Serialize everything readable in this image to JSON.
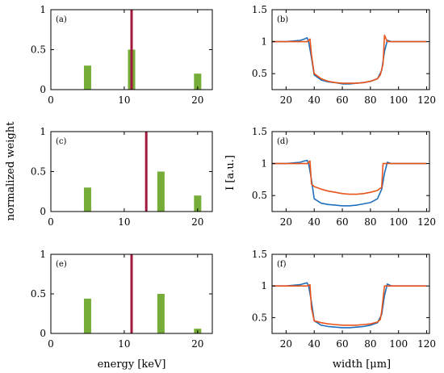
{
  "figure": {
    "shared_ylabel_left": "normalized weight",
    "shared_ylabel_right": "I [a.u.]",
    "shared_xlabel_left": "energy [keV]",
    "shared_xlabel_right": "width [μm]"
  },
  "colors": {
    "bars": "#76ad38",
    "vline": "#a0183c",
    "profile_blue": "#1f6fba",
    "profile_orange": "#e8541c",
    "axis": "#000000"
  },
  "chart_data": [
    {
      "panel": "(a)",
      "type": "bar",
      "x": [
        5,
        11,
        20
      ],
      "values": [
        0.3,
        0.5,
        0.2
      ],
      "vline": 11,
      "xlim": [
        0,
        22
      ],
      "ylim": [
        0,
        1
      ],
      "xticks": [
        0,
        10,
        20
      ],
      "yticks": [
        0,
        0.5,
        1
      ],
      "ytick_labels": [
        "0",
        "0.5",
        "1"
      ]
    },
    {
      "panel": "(b)",
      "type": "line",
      "xlim": [
        10,
        122
      ],
      "ylim": [
        0.25,
        1.5
      ],
      "xticks": [
        20,
        40,
        60,
        80,
        100,
        120
      ],
      "yticks": [
        0.5,
        1,
        1.5
      ],
      "ytick_labels": [
        "0.5",
        "1",
        "1.5"
      ],
      "series": [
        {
          "color": "blue",
          "x": [
            10,
            20,
            30,
            33,
            35,
            36,
            38,
            40,
            45,
            50,
            55,
            60,
            65,
            70,
            75,
            80,
            85,
            88,
            90,
            92,
            95,
            100,
            110,
            120
          ],
          "y": [
            1.0,
            1.0,
            1.02,
            1.04,
            1.06,
            1.0,
            0.75,
            0.48,
            0.4,
            0.37,
            0.36,
            0.34,
            0.34,
            0.35,
            0.36,
            0.38,
            0.42,
            0.55,
            0.85,
            1.02,
            1.0,
            1.0,
            1.0,
            1.0
          ]
        },
        {
          "color": "orange",
          "x": [
            10,
            20,
            30,
            35,
            37,
            38,
            40,
            45,
            50,
            55,
            60,
            65,
            70,
            75,
            80,
            85,
            87,
            89,
            90,
            92,
            95,
            100,
            110,
            120
          ],
          "y": [
            1.0,
            1.0,
            1.0,
            1.0,
            1.04,
            0.8,
            0.5,
            0.42,
            0.38,
            0.36,
            0.35,
            0.35,
            0.35,
            0.36,
            0.38,
            0.42,
            0.48,
            0.65,
            1.1,
            1.0,
            1.0,
            1.0,
            1.0,
            1.0
          ]
        }
      ]
    },
    {
      "panel": "(c)",
      "type": "bar",
      "x": [
        5,
        15,
        20
      ],
      "values": [
        0.3,
        0.5,
        0.2
      ],
      "vline": 13,
      "xlim": [
        0,
        22
      ],
      "ylim": [
        0,
        1
      ],
      "xticks": [
        0,
        10,
        20
      ],
      "yticks": [
        0,
        0.5,
        1
      ],
      "ytick_labels": [
        "0",
        "0.5",
        "1"
      ]
    },
    {
      "panel": "(d)",
      "type": "line",
      "xlim": [
        10,
        122
      ],
      "ylim": [
        0.25,
        1.5
      ],
      "xticks": [
        20,
        40,
        60,
        80,
        100,
        120
      ],
      "yticks": [
        0.5,
        1,
        1.5
      ],
      "ytick_labels": [
        "0.5",
        "1",
        "1.5"
      ],
      "series": [
        {
          "color": "blue",
          "x": [
            10,
            20,
            30,
            33,
            35,
            36,
            38,
            40,
            45,
            50,
            55,
            60,
            65,
            70,
            75,
            80,
            85,
            88,
            90,
            92,
            95,
            100,
            110,
            120
          ],
          "y": [
            1.0,
            1.0,
            1.02,
            1.04,
            1.05,
            1.0,
            0.75,
            0.45,
            0.38,
            0.36,
            0.35,
            0.34,
            0.34,
            0.35,
            0.37,
            0.39,
            0.45,
            0.6,
            0.85,
            1.02,
            1.0,
            1.0,
            1.0,
            1.0
          ]
        },
        {
          "color": "orange",
          "x": [
            10,
            20,
            30,
            35,
            37,
            38,
            40,
            45,
            50,
            55,
            60,
            65,
            70,
            75,
            80,
            85,
            88,
            89,
            90,
            92,
            95,
            100,
            110,
            120
          ],
          "y": [
            1.0,
            1.0,
            1.0,
            1.0,
            1.04,
            0.68,
            0.64,
            0.6,
            0.57,
            0.55,
            0.53,
            0.52,
            0.52,
            0.53,
            0.55,
            0.58,
            0.63,
            1.0,
            1.0,
            1.0,
            1.0,
            1.0,
            1.0,
            1.0
          ]
        }
      ]
    },
    {
      "panel": "(e)",
      "type": "bar",
      "x": [
        5,
        15,
        20
      ],
      "values": [
        0.44,
        0.5,
        0.06
      ],
      "vline": 11,
      "xlim": [
        0,
        22
      ],
      "ylim": [
        0,
        1
      ],
      "xticks": [
        0,
        10,
        20
      ],
      "yticks": [
        0,
        0.5,
        1
      ],
      "ytick_labels": [
        "0",
        "0.5",
        "1"
      ]
    },
    {
      "panel": "(f)",
      "type": "line",
      "xlim": [
        10,
        122
      ],
      "ylim": [
        0.25,
        1.5
      ],
      "xticks": [
        20,
        40,
        60,
        80,
        100,
        120
      ],
      "yticks": [
        0.5,
        1,
        1.5
      ],
      "ytick_labels": [
        "0.5",
        "1",
        "1.5"
      ],
      "series": [
        {
          "color": "blue",
          "x": [
            10,
            20,
            30,
            33,
            35,
            36,
            38,
            40,
            45,
            50,
            55,
            60,
            65,
            70,
            75,
            80,
            85,
            88,
            90,
            92,
            95,
            100,
            110,
            120
          ],
          "y": [
            1.0,
            1.0,
            1.02,
            1.04,
            1.05,
            1.0,
            0.75,
            0.45,
            0.38,
            0.36,
            0.35,
            0.34,
            0.34,
            0.35,
            0.36,
            0.38,
            0.42,
            0.55,
            0.85,
            1.03,
            1.0,
            1.0,
            1.0,
            1.0
          ]
        },
        {
          "color": "orange",
          "x": [
            10,
            20,
            30,
            35,
            37,
            38,
            40,
            45,
            50,
            55,
            60,
            65,
            70,
            75,
            80,
            85,
            87,
            88,
            90,
            92,
            95,
            100,
            110,
            120
          ],
          "y": [
            1.0,
            1.0,
            1.0,
            1.0,
            1.02,
            0.65,
            0.45,
            0.42,
            0.4,
            0.39,
            0.38,
            0.38,
            0.38,
            0.39,
            0.4,
            0.43,
            0.47,
            0.6,
            1.0,
            1.0,
            1.0,
            1.0,
            1.0,
            1.0
          ]
        }
      ]
    }
  ]
}
